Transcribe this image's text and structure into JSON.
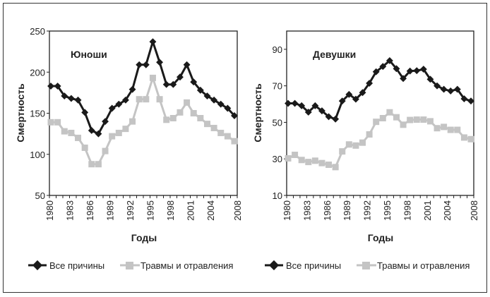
{
  "colors": {
    "all_causes": "#1a1a1a",
    "injuries": "#c4c4c4"
  },
  "chart_data": [
    {
      "type": "line",
      "title": "Юноши",
      "xlabel": "Годы",
      "ylabel": "Смертность",
      "ylim": [
        50,
        250
      ],
      "yticks": [
        50,
        100,
        150,
        200,
        250
      ],
      "xtick_labels": [
        "1980",
        "1983",
        "1986",
        "1989",
        "1992",
        "1995",
        "1998",
        "2001",
        "2004",
        "2008"
      ],
      "x": [
        1980,
        1981,
        1982,
        1983,
        1984,
        1985,
        1986,
        1987,
        1988,
        1989,
        1990,
        1991,
        1992,
        1993,
        1994,
        1995,
        1996,
        1997,
        1998,
        1999,
        2000,
        2001,
        2002,
        2003,
        2004,
        2005,
        2006,
        2007
      ],
      "grid": false,
      "legend": "bottom",
      "series": [
        {
          "name": "Все причины",
          "marker": "diamond",
          "values": [
            183,
            183,
            171,
            168,
            166,
            151,
            129,
            125,
            140,
            156,
            161,
            166,
            179,
            209,
            209,
            237,
            212,
            185,
            185,
            194,
            209,
            188,
            178,
            171,
            166,
            161,
            156,
            147
          ]
        },
        {
          "name": "Травмы и отравления",
          "marker": "square",
          "values": [
            139,
            139,
            128,
            126,
            120,
            108,
            88,
            88,
            104,
            122,
            126,
            131,
            140,
            167,
            167,
            193,
            167,
            142,
            144,
            151,
            163,
            150,
            144,
            137,
            132,
            126,
            122,
            116
          ]
        }
      ]
    },
    {
      "type": "line",
      "title": "Девушки",
      "xlabel": "Годы",
      "ylabel": "Смертность",
      "ylim": [
        10,
        100
      ],
      "yticks": [
        10,
        30,
        50,
        70,
        90
      ],
      "xtick_labels": [
        "1980",
        "1983",
        "1986",
        "1989",
        "1992",
        "1995",
        "1998",
        "2001",
        "2004",
        "2008"
      ],
      "x": [
        1980,
        1981,
        1982,
        1983,
        1984,
        1985,
        1986,
        1987,
        1988,
        1989,
        1990,
        1991,
        1992,
        1993,
        1994,
        1995,
        1996,
        1997,
        1998,
        1999,
        2000,
        2001,
        2002,
        2003,
        2004,
        2005,
        2006,
        2007
      ],
      "grid": false,
      "legend": "bottom",
      "series": [
        {
          "name": "Все причины",
          "marker": "diamond",
          "values": [
            60.4,
            60.4,
            59.1,
            55.6,
            59.1,
            56.3,
            53.1,
            51.8,
            61.7,
            65.3,
            62.7,
            66.3,
            71.4,
            77.7,
            80.6,
            83.8,
            79.4,
            74,
            78.1,
            78.3,
            79.1,
            73.6,
            70,
            68.1,
            67.2,
            68.1,
            62.9,
            61.7
          ]
        },
        {
          "name": "Травмы и отравления",
          "marker": "square",
          "values": [
            30.3,
            32.2,
            29.4,
            28.3,
            29,
            27.7,
            26.8,
            25.5,
            34.1,
            37.9,
            37.3,
            38.9,
            43.4,
            50.3,
            52.3,
            55.5,
            52.8,
            48.7,
            51.3,
            51.5,
            51.5,
            50.6,
            46.8,
            47.5,
            45.9,
            45.9,
            41.7,
            40.8
          ]
        }
      ]
    }
  ]
}
